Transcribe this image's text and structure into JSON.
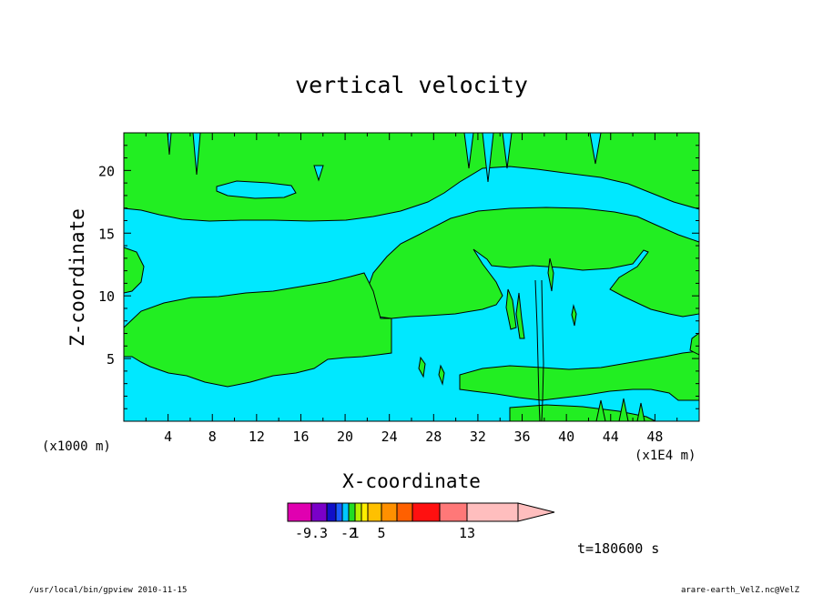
{
  "chart_data": {
    "type": "heatmap",
    "title": "vertical velocity",
    "xlabel": "X-coordinate",
    "ylabel": "Z-coordinate",
    "x_unit_left": "(x1000 m)",
    "x_unit_right": "(x1E4 m)",
    "xlim": [
      0,
      52
    ],
    "ylim": [
      0,
      23
    ],
    "x_ticks": [
      4,
      8,
      12,
      16,
      20,
      24,
      28,
      32,
      36,
      40,
      44,
      48
    ],
    "y_ticks": [
      5,
      10,
      15,
      20
    ],
    "colors": {
      "background_field": "#00e8ff",
      "positive_field": "#22ee22",
      "contour": "#000000"
    },
    "colorbar": {
      "colors": [
        "#e000b0",
        "#7a00c8",
        "#1010c8",
        "#1a5cff",
        "#00c8ff",
        "#22dd22",
        "#b8f000",
        "#ffee00",
        "#ffc000",
        "#ff9000",
        "#ff6000",
        "#ff1010",
        "#ff7878",
        "#ffbebe"
      ],
      "labels": [
        "-9.3",
        "-2",
        "1",
        "5",
        "13"
      ],
      "label_positions": [
        0,
        4,
        5,
        8,
        12
      ]
    },
    "time_label": "t=180600 s"
  },
  "footer": {
    "left": "/usr/local/bin/gpview   2010-11-15",
    "right": "arare-earth_VelZ.nc@VelZ"
  }
}
